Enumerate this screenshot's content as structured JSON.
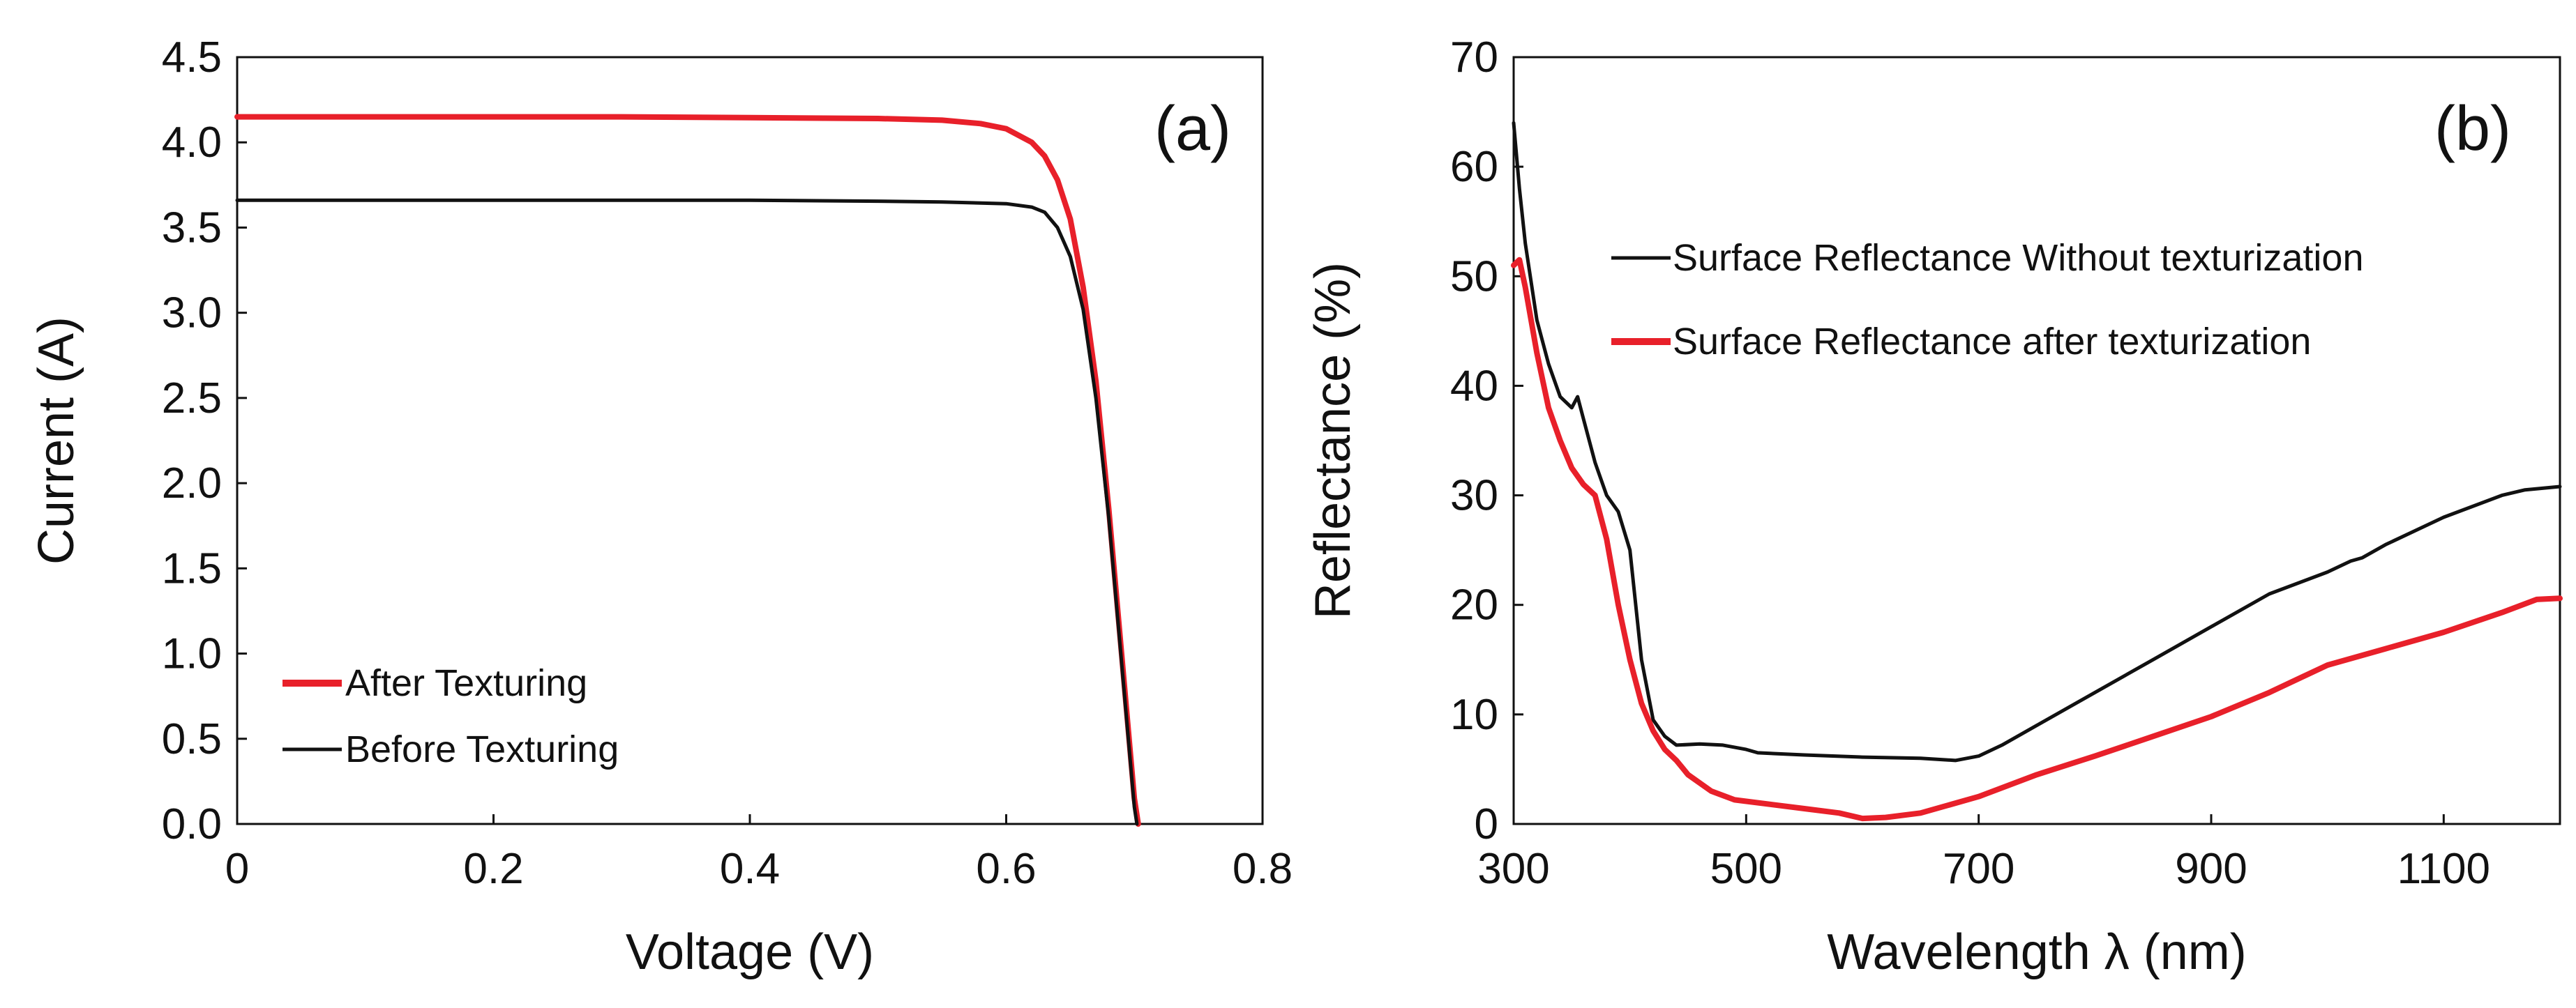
{
  "chart_data": [
    {
      "type": "line",
      "panel_label": "(a)",
      "xlabel": "Voltage (V)",
      "ylabel": "Current (A)",
      "xlim": [
        0,
        0.8
      ],
      "ylim": [
        0,
        4.5
      ],
      "xticks": [
        0,
        0.2,
        0.4,
        0.6,
        0.8
      ],
      "xtick_labels": [
        "0",
        "0.2",
        "0.4",
        "0.6",
        "0.8"
      ],
      "yticks": [
        0,
        0.5,
        1.0,
        1.5,
        2.0,
        2.5,
        3.0,
        3.5,
        4.0,
        4.5
      ],
      "ytick_labels": [
        "0.0",
        "0.5",
        "1.0",
        "1.5",
        "2.0",
        "2.5",
        "3.0",
        "3.5",
        "4.0",
        "4.5"
      ],
      "grid": false,
      "legend": "bottom-left",
      "series": [
        {
          "name": "After Texturing",
          "color": "#e8202a",
          "x": [
            0,
            0.1,
            0.2,
            0.3,
            0.4,
            0.5,
            0.55,
            0.58,
            0.6,
            0.62,
            0.63,
            0.64,
            0.65,
            0.66,
            0.67,
            0.68,
            0.69,
            0.7,
            0.703
          ],
          "y": [
            4.15,
            4.15,
            4.15,
            4.15,
            4.145,
            4.14,
            4.13,
            4.11,
            4.08,
            4.0,
            3.92,
            3.78,
            3.55,
            3.15,
            2.6,
            1.85,
            1.0,
            0.15,
            0
          ]
        },
        {
          "name": "Before Texturing",
          "color": "#111111",
          "x": [
            0,
            0.1,
            0.2,
            0.3,
            0.4,
            0.5,
            0.55,
            0.6,
            0.62,
            0.63,
            0.64,
            0.65,
            0.66,
            0.67,
            0.68,
            0.69,
            0.7,
            0.702
          ],
          "y": [
            3.66,
            3.66,
            3.66,
            3.66,
            3.66,
            3.655,
            3.65,
            3.64,
            3.62,
            3.59,
            3.5,
            3.33,
            3.02,
            2.5,
            1.8,
            0.95,
            0.1,
            0
          ]
        }
      ]
    },
    {
      "type": "line",
      "panel_label": "(b)",
      "xlabel": "Wavelength λ (nm)",
      "ylabel": "Reflectance (%)",
      "xlim": [
        300,
        1200
      ],
      "ylim": [
        0,
        70
      ],
      "xticks": [
        300,
        500,
        700,
        900,
        1100
      ],
      "xtick_labels": [
        "300",
        "500",
        "700",
        "900",
        "1100"
      ],
      "yticks": [
        0,
        10,
        20,
        30,
        40,
        50,
        60,
        70
      ],
      "ytick_labels": [
        "0",
        "10",
        "20",
        "30",
        "40",
        "50",
        "60",
        "70"
      ],
      "grid": false,
      "legend": "upper-center",
      "series": [
        {
          "name": "Surface Reflectance Without texturization",
          "color": "#111111",
          "x": [
            300,
            305,
            310,
            320,
            330,
            340,
            350,
            355,
            360,
            370,
            380,
            390,
            400,
            410,
            420,
            430,
            440,
            460,
            480,
            500,
            510,
            550,
            600,
            650,
            680,
            700,
            720,
            750,
            800,
            850,
            900,
            950,
            1000,
            1020,
            1030,
            1050,
            1100,
            1150,
            1170,
            1200
          ],
          "y": [
            64,
            58,
            53,
            46,
            42,
            39,
            38,
            39,
            37,
            33,
            30,
            28.5,
            25,
            15,
            9.5,
            8,
            7.2,
            7.3,
            7.2,
            6.8,
            6.5,
            6.3,
            6.1,
            6.0,
            5.8,
            6.2,
            7.2,
            9,
            12,
            15,
            18,
            21,
            23,
            24,
            24.3,
            25.5,
            28,
            30,
            30.5,
            30.8
          ]
        },
        {
          "name": "Surface Reflectance after texturization",
          "color": "#e8202a",
          "x": [
            300,
            305,
            310,
            320,
            330,
            340,
            350,
            360,
            370,
            380,
            390,
            400,
            410,
            420,
            430,
            440,
            450,
            470,
            490,
            520,
            550,
            580,
            600,
            620,
            650,
            700,
            750,
            800,
            850,
            900,
            950,
            1000,
            1050,
            1100,
            1150,
            1180,
            1200
          ],
          "y": [
            51,
            51.5,
            49,
            43,
            38,
            35,
            32.5,
            31,
            30,
            26,
            20,
            15,
            11,
            8.5,
            6.8,
            5.8,
            4.5,
            3.0,
            2.2,
            1.8,
            1.4,
            1.0,
            0.5,
            0.6,
            1.0,
            2.5,
            4.5,
            6.2,
            8,
            9.8,
            12,
            14.5,
            16,
            17.5,
            19.3,
            20.5,
            20.6
          ]
        }
      ]
    }
  ]
}
